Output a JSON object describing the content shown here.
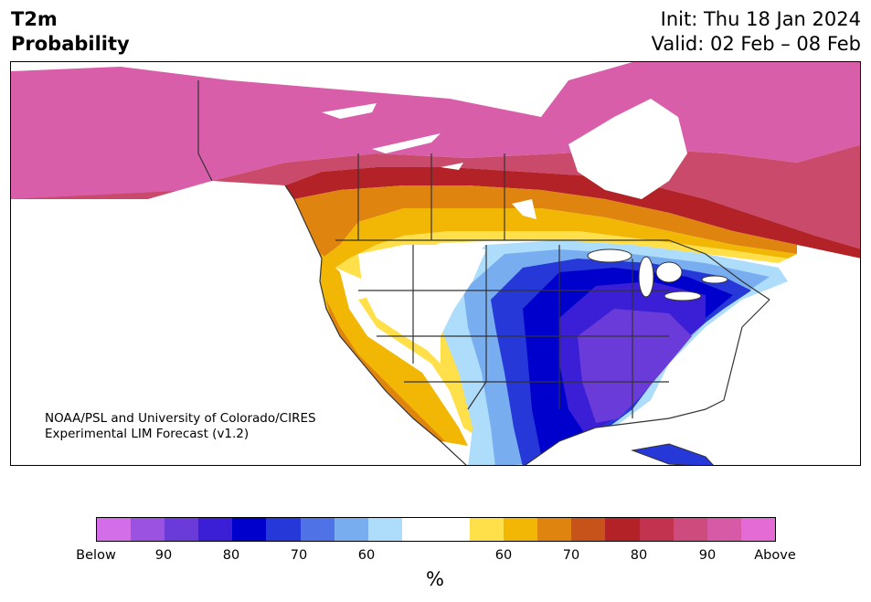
{
  "title": {
    "variable": "T2m",
    "metric": "Probability"
  },
  "init": "Init: Thu 18 Jan 2024",
  "valid": "Valid: 02 Feb – 08 Feb",
  "credit_line1": "NOAA/PSL and University of Colorado/CIRES",
  "credit_line2": "Experimental LIM Forecast (v1.2)",
  "colorbar": {
    "colors": [
      "#d46ee8",
      "#9b52e0",
      "#6b3bd9",
      "#3a1fd6",
      "#0000cc",
      "#2638d8",
      "#4f72e6",
      "#78aef0",
      "#aedcfb",
      "#ffffff",
      "#ffffff",
      "#ffe04a",
      "#f2b705",
      "#df850f",
      "#c7521a",
      "#b22226",
      "#c2334f",
      "#cd4b7d",
      "#d75aa6",
      "#e46ad6"
    ],
    "tick_labels": [
      "Below",
      "90",
      "80",
      "70",
      "60",
      "60",
      "70",
      "80",
      "90",
      "Above"
    ],
    "unit": "%"
  },
  "map_colors": {
    "ocean": "#ffffff",
    "border": "#333333",
    "above90": "#d95eaa",
    "above80": "#c94a6a",
    "above70": "#b22226",
    "above60": "#df850f",
    "above50": "#f2b705",
    "above40": "#ffe04a",
    "below50": "#aedcfb",
    "below60": "#78aef0",
    "below70": "#2638d8",
    "below80": "#0000cc",
    "below90": "#3a1fd6",
    "below95": "#6b3bd9"
  }
}
